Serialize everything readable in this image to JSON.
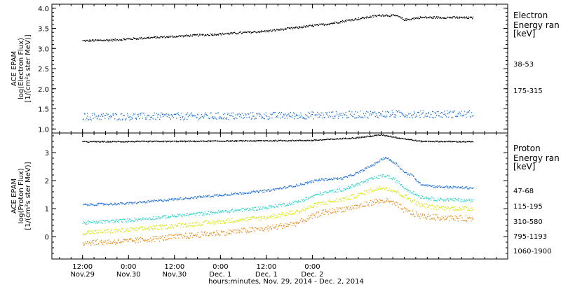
{
  "chart_data": [
    {
      "type": "scatter",
      "panel": "electron",
      "ylabel_lines": [
        "ACE EPAM",
        "log(Electron Flux)",
        "[1/(cm²s ster MeV)]"
      ],
      "ylim": [
        0.9,
        4.1
      ],
      "yticks": [
        1.0,
        1.5,
        2.0,
        2.5,
        3.0,
        3.5,
        4.0
      ],
      "ytick_labels": [
        "1.0",
        "1.5",
        "2.0",
        "2.5",
        "3.0",
        "3.5",
        "4.0"
      ],
      "legend_title_lines": [
        "Electron",
        "Energy ran",
        "[keV]"
      ],
      "series": [
        {
          "name": "38-53",
          "color": "#000000",
          "points": [
            [
              0,
              3.2
            ],
            [
              8,
              3.22
            ],
            [
              16,
              3.27
            ],
            [
              24,
              3.31
            ],
            [
              32,
              3.35
            ],
            [
              40,
              3.39
            ],
            [
              48,
              3.44
            ],
            [
              56,
              3.53
            ],
            [
              64,
              3.62
            ],
            [
              70,
              3.72
            ],
            [
              74,
              3.78
            ],
            [
              78,
              3.84
            ],
            [
              82,
              3.82
            ],
            [
              84,
              3.72
            ],
            [
              88,
              3.78
            ],
            [
              96,
              3.78
            ],
            [
              102,
              3.77
            ]
          ],
          "noise": 0.025
        },
        {
          "name": "175-315",
          "color": "#1f6fd6",
          "points": [
            [
              0,
              1.32
            ],
            [
              20,
              1.32
            ],
            [
              40,
              1.33
            ],
            [
              60,
              1.35
            ],
            [
              80,
              1.38
            ],
            [
              102,
              1.38
            ]
          ],
          "noise": 0.09
        }
      ]
    },
    {
      "type": "scatter",
      "panel": "proton",
      "ylabel_lines": [
        "ACE EPAM",
        "log(Proton Flux)",
        "[1/(cm²s ster MeV)]"
      ],
      "ylim": [
        -0.8,
        3.7
      ],
      "yticks": [
        0,
        1,
        2,
        3
      ],
      "ytick_labels": [
        "0",
        "1",
        "2",
        "3"
      ],
      "legend_title_lines": [
        "Proton",
        "Energy ran",
        "[keV]"
      ],
      "series": [
        {
          "name": "47-68",
          "color": "#000000",
          "points": [
            [
              0,
              3.4
            ],
            [
              30,
              3.42
            ],
            [
              60,
              3.45
            ],
            [
              72,
              3.55
            ],
            [
              78,
              3.65
            ],
            [
              82,
              3.55
            ],
            [
              88,
              3.42
            ],
            [
              102,
              3.4
            ]
          ],
          "noise": 0.02
        },
        {
          "name": "115-195",
          "color": "#1f6fd6",
          "points": [
            [
              0,
              1.15
            ],
            [
              12,
              1.2
            ],
            [
              24,
              1.35
            ],
            [
              36,
              1.5
            ],
            [
              48,
              1.65
            ],
            [
              56,
              1.85
            ],
            [
              62,
              2.05
            ],
            [
              68,
              2.1
            ],
            [
              72,
              2.3
            ],
            [
              76,
              2.6
            ],
            [
              79,
              2.85
            ],
            [
              82,
              2.6
            ],
            [
              84,
              2.3
            ],
            [
              86,
              2.2
            ],
            [
              88,
              1.9
            ],
            [
              92,
              1.8
            ],
            [
              102,
              1.75
            ]
          ],
          "noise": 0.04
        },
        {
          "name": "310-580",
          "color": "#27d6c8",
          "points": [
            [
              0,
              0.5
            ],
            [
              12,
              0.6
            ],
            [
              24,
              0.75
            ],
            [
              36,
              0.9
            ],
            [
              48,
              1.05
            ],
            [
              56,
              1.25
            ],
            [
              62,
              1.55
            ],
            [
              68,
              1.7
            ],
            [
              72,
              1.9
            ],
            [
              76,
              2.1
            ],
            [
              79,
              2.2
            ],
            [
              82,
              2.0
            ],
            [
              84,
              1.75
            ],
            [
              86,
              1.6
            ],
            [
              88,
              1.45
            ],
            [
              92,
              1.35
            ],
            [
              102,
              1.3
            ]
          ],
          "noise": 0.06
        },
        {
          "name": "795-1193",
          "color": "#d8e600",
          "points": [
            [
              0,
              0.15
            ],
            [
              12,
              0.25
            ],
            [
              24,
              0.4
            ],
            [
              36,
              0.55
            ],
            [
              48,
              0.7
            ],
            [
              56,
              0.9
            ],
            [
              62,
              1.2
            ],
            [
              68,
              1.35
            ],
            [
              72,
              1.5
            ],
            [
              76,
              1.7
            ],
            [
              79,
              1.78
            ],
            [
              82,
              1.6
            ],
            [
              84,
              1.45
            ],
            [
              86,
              1.3
            ],
            [
              88,
              1.15
            ],
            [
              92,
              1.05
            ],
            [
              102,
              1.0
            ]
          ],
          "noise": 0.08
        },
        {
          "name": "1060-1900",
          "color": "#e88a18",
          "points": [
            [
              0,
              -0.2
            ],
            [
              12,
              -0.15
            ],
            [
              24,
              0.0
            ],
            [
              36,
              0.15
            ],
            [
              48,
              0.3
            ],
            [
              56,
              0.5
            ],
            [
              62,
              0.85
            ],
            [
              68,
              1.0
            ],
            [
              72,
              1.1
            ],
            [
              76,
              1.25
            ],
            [
              79,
              1.3
            ],
            [
              82,
              1.15
            ],
            [
              84,
              0.95
            ],
            [
              86,
              0.85
            ],
            [
              88,
              0.75
            ],
            [
              92,
              0.7
            ],
            [
              102,
              0.65
            ]
          ],
          "noise": 0.1
        }
      ]
    }
  ],
  "x_axis": {
    "xlim": [
      -8,
      111
    ],
    "ticks": [
      {
        "hour": 0,
        "time": "12:00",
        "date": "Nov.29"
      },
      {
        "hour": 12,
        "time": "0:00",
        "date": "Nov.30"
      },
      {
        "hour": 24,
        "time": "12:00",
        "date": "Nov.30"
      },
      {
        "hour": 36,
        "time": "0:00",
        "date": "Dec. 1"
      },
      {
        "hour": 48,
        "time": "12:00",
        "date": "Dec. 1"
      },
      {
        "hour": 60,
        "time": "0:00",
        "date": "Dec. 2"
      }
    ],
    "xlabel": "hours:minutes, Nov. 29, 2014 - Dec. 2, 2014"
  }
}
